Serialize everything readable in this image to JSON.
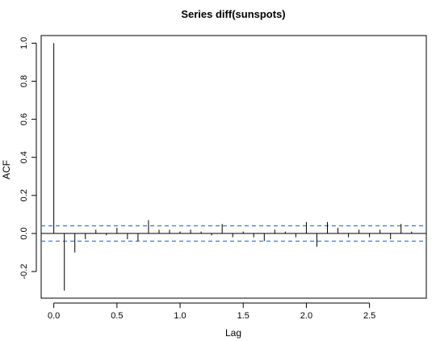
{
  "chart_data": {
    "type": "bar",
    "title": "Series  diff(sunspots)",
    "xlabel": "Lag",
    "ylabel": "ACF",
    "x_ticks": [
      "0.0",
      "0.5",
      "1.0",
      "1.5",
      "2.0",
      "2.5"
    ],
    "x_tick_values": [
      0.0,
      0.5,
      1.0,
      1.5,
      2.0,
      2.5
    ],
    "y_ticks": [
      "-0.2",
      "0.0",
      "0.2",
      "0.4",
      "0.6",
      "0.8",
      "1.0"
    ],
    "y_tick_values": [
      -0.2,
      0.0,
      0.2,
      0.4,
      0.6,
      0.8,
      1.0
    ],
    "xlim": [
      -0.1,
      2.95
    ],
    "ylim": [
      -0.34,
      1.04
    ],
    "lag_step": 0.08333333,
    "acf_values": [
      1.0,
      -0.3,
      -0.1,
      -0.03,
      0.02,
      -0.01,
      0.03,
      -0.03,
      -0.04,
      0.07,
      0.02,
      0.02,
      0.01,
      0.02,
      0.01,
      -0.01,
      0.05,
      -0.02,
      0.01,
      -0.02,
      -0.04,
      0.02,
      0.01,
      -0.02,
      0.06,
      -0.07,
      0.06,
      0.03,
      -0.02,
      0.02,
      -0.02,
      0.02,
      -0.03,
      0.05,
      0.01
    ],
    "confidence_bound": 0.04,
    "confidence_color": "#2e5db0",
    "grid": false,
    "legend": "none"
  }
}
